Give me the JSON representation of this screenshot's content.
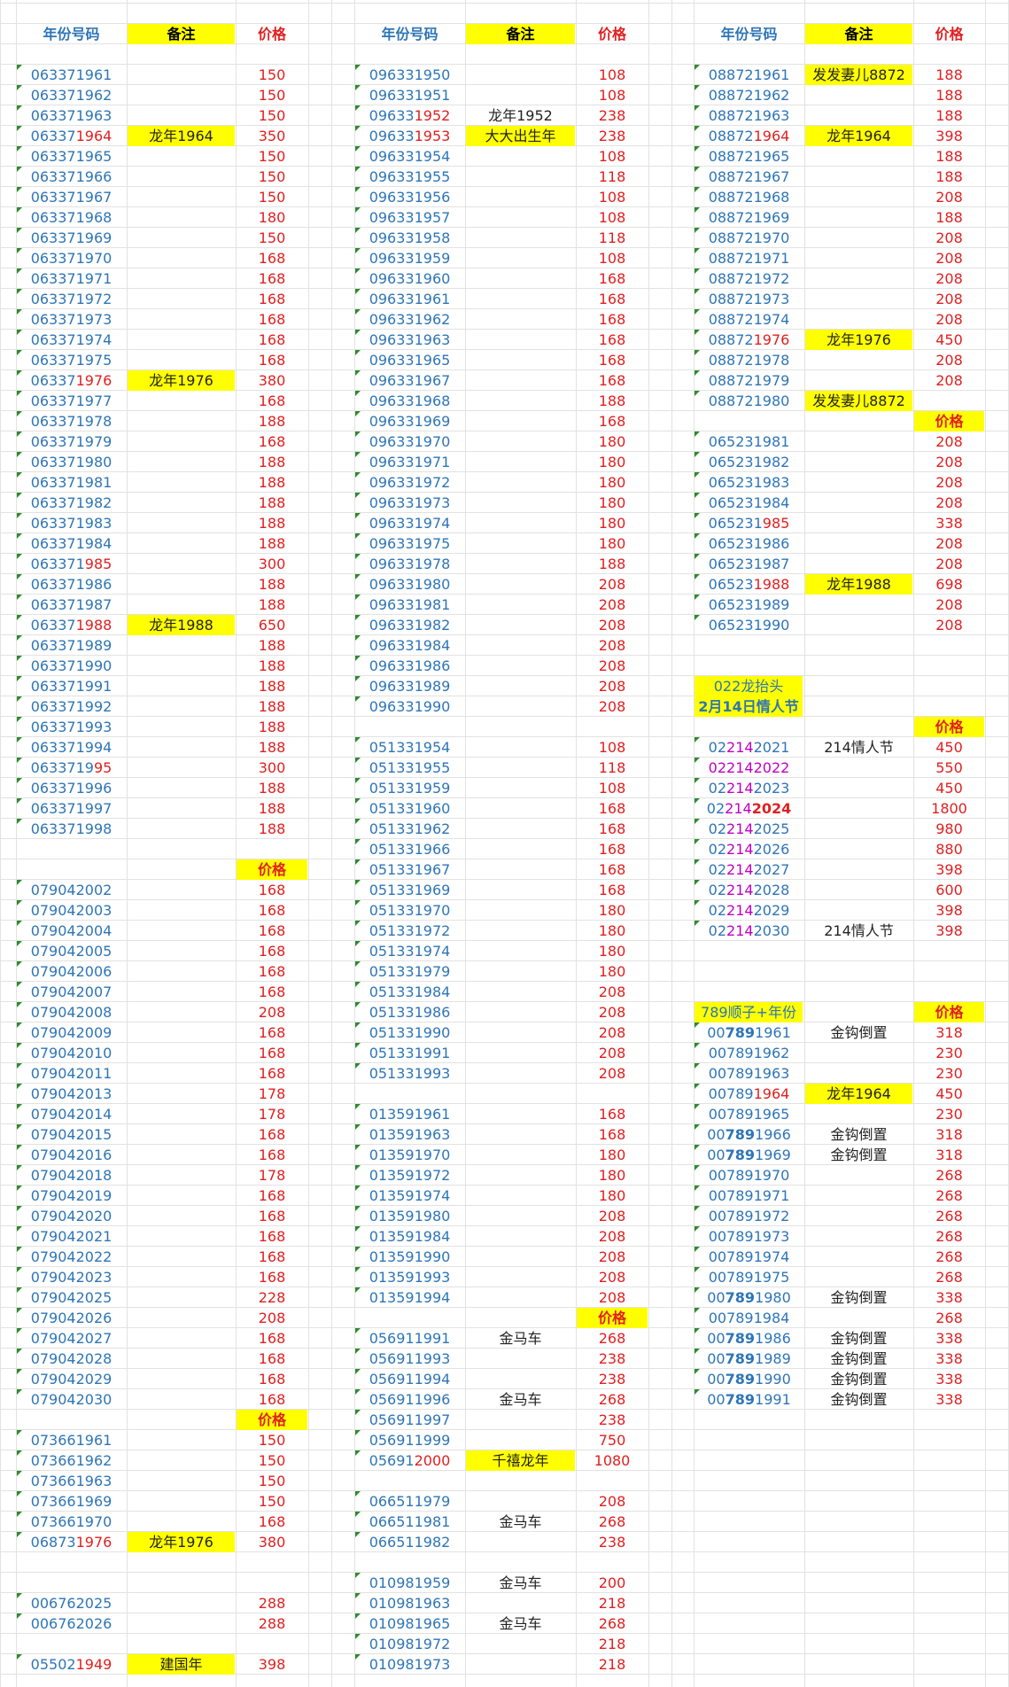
{
  "sections": [
    {
      "id": "s1",
      "col": 0,
      "header": {
        "number": "年份号码",
        "note": "备注",
        "price": "价格"
      },
      "startRow": 3,
      "rows": [
        {
          "n": "063371961",
          "p": "150"
        },
        {
          "n": "063371962",
          "p": "150"
        },
        {
          "n": "063371963",
          "p": "150"
        },
        {
          "n": "063371964",
          "p": "350",
          "note": "龙年1964",
          "yn": true,
          "hl": [
            5,
            9
          ]
        },
        {
          "n": "063371965",
          "p": "150"
        },
        {
          "n": "063371966",
          "p": "150"
        },
        {
          "n": "063371967",
          "p": "150"
        },
        {
          "n": "063371968",
          "p": "180"
        },
        {
          "n": "063371969",
          "p": "150"
        },
        {
          "n": "063371970",
          "p": "168"
        },
        {
          "n": "063371971",
          "p": "168"
        },
        {
          "n": "063371972",
          "p": "168"
        },
        {
          "n": "063371973",
          "p": "168"
        },
        {
          "n": "063371974",
          "p": "168"
        },
        {
          "n": "063371975",
          "p": "168"
        },
        {
          "n": "063371976",
          "p": "380",
          "note": "龙年1976",
          "yn": true,
          "hl": [
            5,
            9
          ]
        },
        {
          "n": "063371977",
          "p": "168"
        },
        {
          "n": "063371978",
          "p": "188"
        },
        {
          "n": "063371979",
          "p": "168"
        },
        {
          "n": "063371980",
          "p": "188"
        },
        {
          "n": "063371981",
          "p": "188"
        },
        {
          "n": "063371982",
          "p": "188"
        },
        {
          "n": "063371983",
          "p": "188"
        },
        {
          "n": "063371984",
          "p": "188"
        },
        {
          "n": "063371985",
          "p": "300",
          "hl": [
            6,
            9
          ]
        },
        {
          "n": "063371986",
          "p": "188"
        },
        {
          "n": "063371987",
          "p": "188"
        },
        {
          "n": "063371988",
          "p": "650",
          "note": "龙年1988",
          "yn": true,
          "hl": [
            5,
            9
          ]
        },
        {
          "n": "063371989",
          "p": "188"
        },
        {
          "n": "063371990",
          "p": "188"
        },
        {
          "n": "063371991",
          "p": "188"
        },
        {
          "n": "063371992",
          "p": "188"
        },
        {
          "n": "063371993",
          "p": "188"
        },
        {
          "n": "063371994",
          "p": "188"
        },
        {
          "n": "063371995",
          "p": "300",
          "hl": [
            7,
            9
          ]
        },
        {
          "n": "063371996",
          "p": "188"
        },
        {
          "n": "063371997",
          "p": "188"
        },
        {
          "n": "063371998",
          "p": "188"
        }
      ]
    },
    {
      "id": "s2",
      "col": 0,
      "priceHeader": "价格",
      "startRow": 43,
      "rows": [
        {
          "n": "079042002",
          "p": "168"
        },
        {
          "n": "079042003",
          "p": "168"
        },
        {
          "n": "079042004",
          "p": "168"
        },
        {
          "n": "079042005",
          "p": "168"
        },
        {
          "n": "079042006",
          "p": "168"
        },
        {
          "n": "079042007",
          "p": "168"
        },
        {
          "n": "079042008",
          "p": "208"
        },
        {
          "n": "079042009",
          "p": "168"
        },
        {
          "n": "079042010",
          "p": "168"
        },
        {
          "n": "079042011",
          "p": "168"
        },
        {
          "n": "079042013",
          "p": "178"
        },
        {
          "n": "079042014",
          "p": "178"
        },
        {
          "n": "079042015",
          "p": "168"
        },
        {
          "n": "079042016",
          "p": "168"
        },
        {
          "n": "079042018",
          "p": "178"
        },
        {
          "n": "079042019",
          "p": "168"
        },
        {
          "n": "079042020",
          "p": "168"
        },
        {
          "n": "079042021",
          "p": "168"
        },
        {
          "n": "079042022",
          "p": "168"
        },
        {
          "n": "079042023",
          "p": "168"
        },
        {
          "n": "079042025",
          "p": "228"
        },
        {
          "n": "079042026",
          "p": "208"
        },
        {
          "n": "079042027",
          "p": "168"
        },
        {
          "n": "079042028",
          "p": "168"
        },
        {
          "n": "079042029",
          "p": "168"
        },
        {
          "n": "079042030",
          "p": "168"
        }
      ]
    },
    {
      "id": "s3",
      "col": 0,
      "priceHeader": "价格",
      "startRow": 70,
      "rows": [
        {
          "n": "073661961",
          "p": "150"
        },
        {
          "n": "073661962",
          "p": "150"
        },
        {
          "n": "073661963",
          "p": "150"
        },
        {
          "n": "073661969",
          "p": "150"
        },
        {
          "n": "073661970",
          "p": "168"
        },
        {
          "n": "068731976",
          "p": "380",
          "note": "龙年1976",
          "yn": true,
          "hl": [
            5,
            9
          ]
        }
      ]
    },
    {
      "id": "s4",
      "col": 0,
      "startRow": 78,
      "rows": [
        {
          "n": "006762025",
          "p": "288"
        },
        {
          "n": "006762026",
          "p": "288"
        }
      ]
    },
    {
      "id": "s5",
      "col": 0,
      "startRow": 81,
      "rows": [
        {
          "n": "055021949",
          "p": "398",
          "note": "建国年",
          "yn": true,
          "hl": [
            5,
            9
          ]
        }
      ]
    },
    {
      "id": "s6",
      "col": 1,
      "header": {
        "number": "年份号码",
        "note": "备注",
        "price": "价格"
      },
      "startRow": 3,
      "rows": [
        {
          "n": "096331950",
          "p": "108"
        },
        {
          "n": "096331951",
          "p": "108"
        },
        {
          "n": "096331952",
          "p": "238",
          "note": "龙年1952",
          "hl": [
            5,
            9
          ]
        },
        {
          "n": "096331953",
          "p": "238",
          "note": "大大出生年",
          "yn": true,
          "hl": [
            5,
            9
          ]
        },
        {
          "n": "096331954",
          "p": "108"
        },
        {
          "n": "096331955",
          "p": "118"
        },
        {
          "n": "096331956",
          "p": "108"
        },
        {
          "n": "096331957",
          "p": "108"
        },
        {
          "n": "096331958",
          "p": "118"
        },
        {
          "n": "096331959",
          "p": "108"
        },
        {
          "n": "096331960",
          "p": "168"
        },
        {
          "n": "096331961",
          "p": "168"
        },
        {
          "n": "096331962",
          "p": "168"
        },
        {
          "n": "096331963",
          "p": "168"
        },
        {
          "n": "096331965",
          "p": "168"
        },
        {
          "n": "096331967",
          "p": "168"
        },
        {
          "n": "096331968",
          "p": "188"
        },
        {
          "n": "096331969",
          "p": "168"
        },
        {
          "n": "096331970",
          "p": "180"
        },
        {
          "n": "096331971",
          "p": "180"
        },
        {
          "n": "096331972",
          "p": "180"
        },
        {
          "n": "096331973",
          "p": "180"
        },
        {
          "n": "096331974",
          "p": "180"
        },
        {
          "n": "096331975",
          "p": "180"
        },
        {
          "n": "096331978",
          "p": "188"
        },
        {
          "n": "096331980",
          "p": "208"
        },
        {
          "n": "096331981",
          "p": "208"
        },
        {
          "n": "096331982",
          "p": "208"
        },
        {
          "n": "096331984",
          "p": "208"
        },
        {
          "n": "096331986",
          "p": "208"
        },
        {
          "n": "096331989",
          "p": "208"
        },
        {
          "n": "096331990",
          "p": "208"
        }
      ]
    },
    {
      "id": "s7",
      "col": 1,
      "startRow": 36,
      "rows": [
        {
          "n": "051331954",
          "p": "108"
        },
        {
          "n": "051331955",
          "p": "118"
        },
        {
          "n": "051331959",
          "p": "108"
        },
        {
          "n": "051331960",
          "p": "168"
        },
        {
          "n": "051331962",
          "p": "168"
        },
        {
          "n": "051331966",
          "p": "168"
        },
        {
          "n": "051331967",
          "p": "168"
        },
        {
          "n": "051331969",
          "p": "168"
        },
        {
          "n": "051331970",
          "p": "180"
        },
        {
          "n": "051331972",
          "p": "180"
        },
        {
          "n": "051331974",
          "p": "180"
        },
        {
          "n": "051331979",
          "p": "180"
        },
        {
          "n": "051331984",
          "p": "208"
        },
        {
          "n": "051331986",
          "p": "208"
        },
        {
          "n": "051331990",
          "p": "208"
        },
        {
          "n": "051331991",
          "p": "208"
        },
        {
          "n": "051331993",
          "p": "208"
        }
      ]
    },
    {
      "id": "s8",
      "col": 1,
      "startRow": 54,
      "rows": [
        {
          "n": "013591961",
          "p": "168"
        },
        {
          "n": "013591963",
          "p": "168"
        },
        {
          "n": "013591970",
          "p": "180"
        },
        {
          "n": "013591972",
          "p": "180"
        },
        {
          "n": "013591974",
          "p": "180"
        },
        {
          "n": "013591980",
          "p": "208"
        },
        {
          "n": "013591984",
          "p": "208"
        },
        {
          "n": "013591990",
          "p": "208"
        },
        {
          "n": "013591993",
          "p": "208"
        },
        {
          "n": "013591994",
          "p": "208"
        }
      ]
    },
    {
      "id": "s9",
      "col": 1,
      "priceHeader": "价格",
      "startRow": 65,
      "rows": [
        {
          "n": "056911991",
          "p": "268",
          "note": "金马车"
        },
        {
          "n": "056911993",
          "p": "238"
        },
        {
          "n": "056911994",
          "p": "238"
        },
        {
          "n": "056911996",
          "p": "268",
          "note": "金马车"
        },
        {
          "n": "056911997",
          "p": "238"
        },
        {
          "n": "056911999",
          "p": "750"
        },
        {
          "n": "056912000",
          "p": "1080",
          "note": "千禧龙年",
          "yn": true,
          "hl": [
            5,
            9
          ]
        }
      ]
    },
    {
      "id": "s10",
      "col": 1,
      "startRow": 73,
      "rows": [
        {
          "n": "066511979",
          "p": "208"
        },
        {
          "n": "066511981",
          "p": "268",
          "note": "金马车"
        },
        {
          "n": "066511982",
          "p": "238"
        }
      ]
    },
    {
      "id": "s11",
      "col": 1,
      "startRow": 77,
      "rows": [
        {
          "n": "010981959",
          "p": "200",
          "note": "金马车"
        },
        {
          "n": "010981963",
          "p": "218"
        },
        {
          "n": "010981965",
          "p": "268",
          "note": "金马车"
        },
        {
          "n": "010981972",
          "p": "218"
        },
        {
          "n": "010981973",
          "p": "218"
        }
      ]
    },
    {
      "id": "s12",
      "col": 2,
      "header": {
        "number": "年份号码",
        "note": "备注",
        "price": "价格"
      },
      "startRow": 3,
      "rows": [
        {
          "n": "088721961",
          "p": "188",
          "note": "发发妻儿8872",
          "yn": true
        },
        {
          "n": "088721962",
          "p": "188"
        },
        {
          "n": "088721963",
          "p": "188"
        },
        {
          "n": "088721964",
          "p": "398",
          "note": "龙年1964",
          "yn": true,
          "hl": [
            5,
            9
          ]
        },
        {
          "n": "088721965",
          "p": "188"
        },
        {
          "n": "088721967",
          "p": "188"
        },
        {
          "n": "088721968",
          "p": "208"
        },
        {
          "n": "088721969",
          "p": "188"
        },
        {
          "n": "088721970",
          "p": "208"
        },
        {
          "n": "088721971",
          "p": "208"
        },
        {
          "n": "088721972",
          "p": "208"
        },
        {
          "n": "088721973",
          "p": "208"
        },
        {
          "n": "088721974",
          "p": "208"
        },
        {
          "n": "088721976",
          "p": "450",
          "note": "龙年1976",
          "yn": true,
          "hl": [
            5,
            9
          ]
        },
        {
          "n": "088721978",
          "p": "208"
        },
        {
          "n": "088721979",
          "p": "208"
        },
        {
          "n": "088721980",
          "p": "",
          "note": "发发妻儿8872",
          "yn": true
        }
      ]
    },
    {
      "id": "s13",
      "col": 2,
      "priceHeader": "价格",
      "startRow": 21,
      "rows": [
        {
          "n": "065231981",
          "p": "208"
        },
        {
          "n": "065231982",
          "p": "208"
        },
        {
          "n": "065231983",
          "p": "208"
        },
        {
          "n": "065231984",
          "p": "208"
        },
        {
          "n": "065231985",
          "p": "338",
          "hl": [
            6,
            9
          ]
        },
        {
          "n": "065231986",
          "p": "208"
        },
        {
          "n": "065231987",
          "p": "208"
        },
        {
          "n": "065231988",
          "p": "698",
          "note": "龙年1988",
          "yn": true,
          "hl": [
            5,
            9
          ]
        },
        {
          "n": "065231989",
          "p": "208"
        },
        {
          "n": "065231990",
          "p": "208"
        }
      ]
    },
    {
      "id": "s14",
      "col": 2,
      "label1": "022龙抬头",
      "label2": "2月14日情人节",
      "priceHeader": "价格",
      "startRow": 36,
      "rows": [
        {
          "n": "022142021",
          "p": "450",
          "note": "214情人节",
          "pk": [
            2,
            5
          ]
        },
        {
          "n": "022142022",
          "p": "550",
          "pk": [
            0,
            9
          ]
        },
        {
          "n": "022142023",
          "p": "450",
          "pk": [
            2,
            5
          ]
        },
        {
          "n": "022142024",
          "p": "1800",
          "pk": [
            2,
            5
          ],
          "bold": [
            5,
            9
          ]
        },
        {
          "n": "022142025",
          "p": "980",
          "pk": [
            2,
            5
          ]
        },
        {
          "n": "022142026",
          "p": "880",
          "pk": [
            2,
            5
          ]
        },
        {
          "n": "022142027",
          "p": "398",
          "pk": [
            2,
            5
          ]
        },
        {
          "n": "022142028",
          "p": "600",
          "pk": [
            2,
            5
          ]
        },
        {
          "n": "022142029",
          "p": "398",
          "pk": [
            2,
            5
          ]
        },
        {
          "n": "022142030",
          "p": "398",
          "note": "214情人节",
          "pk": [
            2,
            5
          ]
        }
      ]
    },
    {
      "id": "s15",
      "col": 2,
      "label1": "789顺子+年份",
      "priceHeader": "价格",
      "startRow": 50,
      "rows": [
        {
          "n": "007891961",
          "p": "318",
          "note": "金钩倒置",
          "bd": [
            2,
            5
          ]
        },
        {
          "n": "007891962",
          "p": "230"
        },
        {
          "n": "007891963",
          "p": "230"
        },
        {
          "n": "007891964",
          "p": "450",
          "note": "龙年1964",
          "yn": true,
          "hl": [
            5,
            9
          ]
        },
        {
          "n": "007891965",
          "p": "230"
        },
        {
          "n": "007891966",
          "p": "318",
          "note": "金钩倒置",
          "bd": [
            2,
            5
          ]
        },
        {
          "n": "007891969",
          "p": "318",
          "note": "金钩倒置",
          "bd": [
            2,
            5
          ]
        },
        {
          "n": "007891970",
          "p": "268"
        },
        {
          "n": "007891971",
          "p": "268"
        },
        {
          "n": "007891972",
          "p": "268"
        },
        {
          "n": "007891973",
          "p": "268"
        },
        {
          "n": "007891974",
          "p": "268"
        },
        {
          "n": "007891975",
          "p": "268"
        },
        {
          "n": "007891980",
          "p": "338",
          "note": "金钩倒置",
          "bd": [
            2,
            5
          ]
        },
        {
          "n": "007891984",
          "p": "268"
        },
        {
          "n": "007891986",
          "p": "338",
          "note": "金钩倒置",
          "bd": [
            2,
            5
          ]
        },
        {
          "n": "007891989",
          "p": "338",
          "note": "金钩倒置",
          "bd": [
            2,
            5
          ]
        },
        {
          "n": "007891990",
          "p": "338",
          "note": "金钩倒置",
          "bd": [
            2,
            5
          ]
        },
        {
          "n": "007891991",
          "p": "338",
          "note": "金钩倒置",
          "bd": [
            2,
            5
          ]
        }
      ]
    }
  ],
  "colors": {
    "number": "#2e75b6",
    "price": "#e02020",
    "highlight": "#ffff00",
    "accentPink": "#c000c0",
    "marker": "#2e8b2e",
    "grid": "#e2e2e2"
  }
}
